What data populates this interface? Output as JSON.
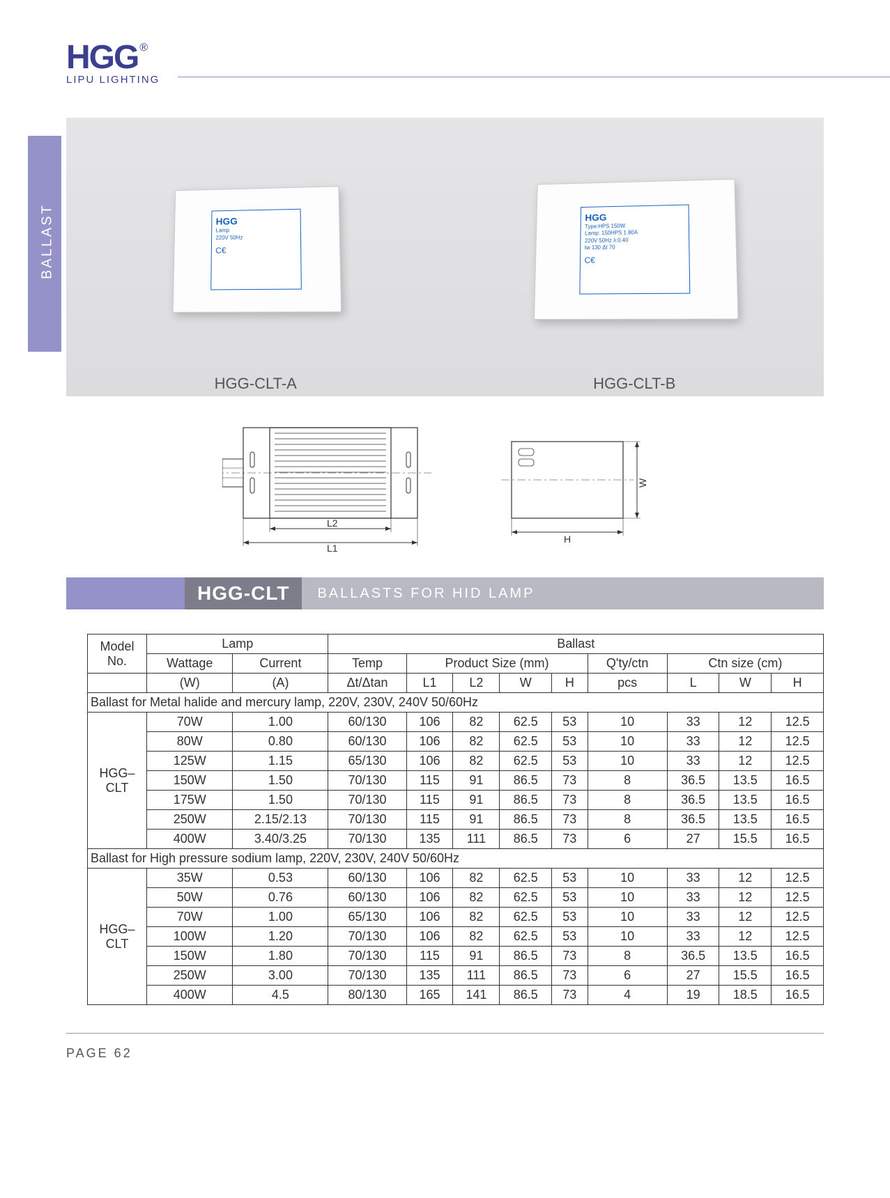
{
  "brand": {
    "logo": "HGG",
    "reg": "®",
    "subtitle": "LIPU LIGHTING"
  },
  "side_tab": "BALLAST",
  "products": {
    "a": {
      "caption": "HGG-CLT-A",
      "label_brand": "HGG",
      "label_text": "Lamp\n220V   50Hz\n"
    },
    "b": {
      "caption": "HGG-CLT-B",
      "label_brand": "HGG",
      "label_text": "Type:HPS 150W\nLamp: 150HPS  1.80A\n220V  50Hz  λ:0.40\ntw 130  Δt 70"
    }
  },
  "diagram": {
    "L1": "L1",
    "L2": "L2",
    "H": "H",
    "W": "W"
  },
  "title_bar": {
    "model": "HGG-CLT",
    "desc": "BALLASTS FOR HID LAMP"
  },
  "table": {
    "header_groups": {
      "model": "Model No.",
      "lamp": "Lamp",
      "ballast": "Ballast"
    },
    "header_cols1": {
      "wattage": "Wattage",
      "current": "Current",
      "temp": "Temp",
      "psize": "Product Size (mm)",
      "qty": "Q'ty/ctn",
      "ctn": "Ctn size (cm)"
    },
    "header_cols2": {
      "w_unit": "(W)",
      "a_unit": "(A)",
      "dt": "Δt/Δtan",
      "L1": "L1",
      "L2": "L2",
      "W": "W",
      "H": "H",
      "pcs": "pcs",
      "cL": "L",
      "cW": "W",
      "cH": "H"
    },
    "section1": {
      "title": "Ballast for Metal halide and mercury lamp, 220V, 230V, 240V 50/60Hz",
      "model": "HGG–CLT",
      "rows": [
        [
          "70W",
          "1.00",
          "60/130",
          "106",
          "82",
          "62.5",
          "53",
          "10",
          "33",
          "12",
          "12.5"
        ],
        [
          "80W",
          "0.80",
          "60/130",
          "106",
          "82",
          "62.5",
          "53",
          "10",
          "33",
          "12",
          "12.5"
        ],
        [
          "125W",
          "1.15",
          "65/130",
          "106",
          "82",
          "62.5",
          "53",
          "10",
          "33",
          "12",
          "12.5"
        ],
        [
          "150W",
          "1.50",
          "70/130",
          "115",
          "91",
          "86.5",
          "73",
          "8",
          "36.5",
          "13.5",
          "16.5"
        ],
        [
          "175W",
          "1.50",
          "70/130",
          "115",
          "91",
          "86.5",
          "73",
          "8",
          "36.5",
          "13.5",
          "16.5"
        ],
        [
          "250W",
          "2.15/2.13",
          "70/130",
          "115",
          "91",
          "86.5",
          "73",
          "8",
          "36.5",
          "13.5",
          "16.5"
        ],
        [
          "400W",
          "3.40/3.25",
          "70/130",
          "135",
          "111",
          "86.5",
          "73",
          "6",
          "27",
          "15.5",
          "16.5"
        ]
      ]
    },
    "section2": {
      "title": "Ballast for High pressure sodium lamp, 220V, 230V, 240V 50/60Hz",
      "model": "HGG–CLT",
      "rows": [
        [
          "35W",
          "0.53",
          "60/130",
          "106",
          "82",
          "62.5",
          "53",
          "10",
          "33",
          "12",
          "12.5"
        ],
        [
          "50W",
          "0.76",
          "60/130",
          "106",
          "82",
          "62.5",
          "53",
          "10",
          "33",
          "12",
          "12.5"
        ],
        [
          "70W",
          "1.00",
          "65/130",
          "106",
          "82",
          "62.5",
          "53",
          "10",
          "33",
          "12",
          "12.5"
        ],
        [
          "100W",
          "1.20",
          "70/130",
          "106",
          "82",
          "62.5",
          "53",
          "10",
          "33",
          "12",
          "12.5"
        ],
        [
          "150W",
          "1.80",
          "70/130",
          "115",
          "91",
          "86.5",
          "73",
          "8",
          "36.5",
          "13.5",
          "16.5"
        ],
        [
          "250W",
          "3.00",
          "70/130",
          "135",
          "111",
          "86.5",
          "73",
          "6",
          "27",
          "15.5",
          "16.5"
        ],
        [
          "400W",
          "4.5",
          "80/130",
          "165",
          "141",
          "86.5",
          "73",
          "4",
          "19",
          "18.5",
          "16.5"
        ]
      ]
    }
  },
  "page": "PAGE 62",
  "colors": {
    "purple": "#9591c9",
    "dark_purple": "#3b3f8f",
    "bar_dark": "#7c7c8a",
    "bar_light": "#b9b9c3"
  }
}
